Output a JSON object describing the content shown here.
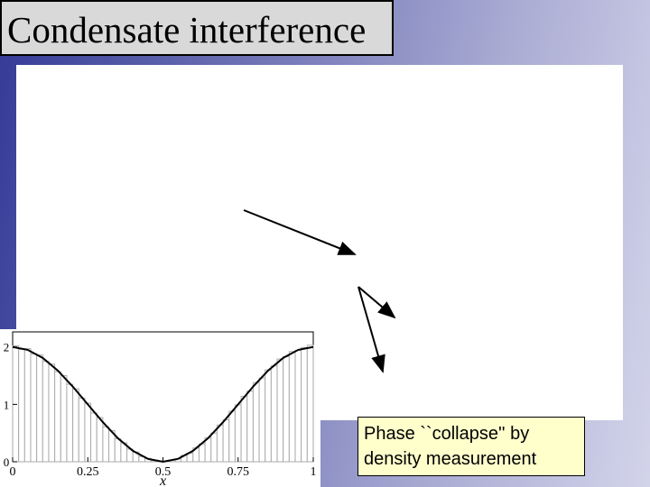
{
  "title": "Condensate interference",
  "caption": "Phase ``collapse'' by density measurement",
  "chart_data": {
    "type": "histogram",
    "xlabel": "x",
    "bins": [
      0,
      0.02,
      0.04,
      0.06,
      0.08,
      0.1,
      0.12,
      0.14,
      0.16,
      0.18,
      0.2,
      0.22,
      0.24,
      0.26,
      0.28,
      0.3,
      0.32,
      0.34,
      0.36,
      0.38,
      0.4,
      0.42,
      0.44,
      0.46,
      0.48,
      0.5,
      0.52,
      0.54,
      0.56,
      0.58,
      0.6,
      0.62,
      0.64,
      0.66,
      0.68,
      0.7,
      0.72,
      0.74,
      0.76,
      0.78,
      0.8,
      0.82,
      0.84,
      0.86,
      0.88,
      0.9,
      0.92,
      0.94,
      0.96,
      0.98,
      1
    ],
    "values": [
      2.02,
      1.96,
      1.97,
      1.88,
      1.86,
      1.75,
      1.7,
      1.57,
      1.5,
      1.35,
      1.27,
      1.11,
      1.02,
      0.85,
      0.77,
      0.61,
      0.54,
      0.4,
      0.33,
      0.22,
      0.17,
      0.09,
      0.06,
      0.02,
      0.01,
      0.01,
      0.03,
      0.05,
      0.11,
      0.15,
      0.24,
      0.31,
      0.42,
      0.5,
      0.64,
      0.73,
      0.88,
      0.99,
      1.14,
      1.23,
      1.38,
      1.46,
      1.6,
      1.67,
      1.79,
      1.83,
      1.92,
      1.94,
      1.99,
      2.03
    ],
    "color": "#aaaaaa",
    "curve": {
      "color": "#000000",
      "x": [
        0,
        0.05,
        0.1,
        0.15,
        0.2,
        0.25,
        0.3,
        0.35,
        0.4,
        0.45,
        0.5,
        0.55,
        0.6,
        0.65,
        0.7,
        0.75,
        0.8,
        0.85,
        0.9,
        0.95,
        1
      ],
      "values": [
        2,
        1.95,
        1.81,
        1.59,
        1.31,
        1,
        0.69,
        0.41,
        0.19,
        0.05,
        0,
        0.05,
        0.19,
        0.41,
        0.69,
        1,
        1.31,
        1.59,
        1.81,
        1.95,
        2
      ]
    },
    "xlim": [
      0,
      1
    ],
    "ylim": [
      0,
      2.2
    ],
    "xticks": [
      0,
      0.25,
      0.5,
      0.75,
      1
    ],
    "yticks": [
      0,
      1,
      2
    ]
  }
}
